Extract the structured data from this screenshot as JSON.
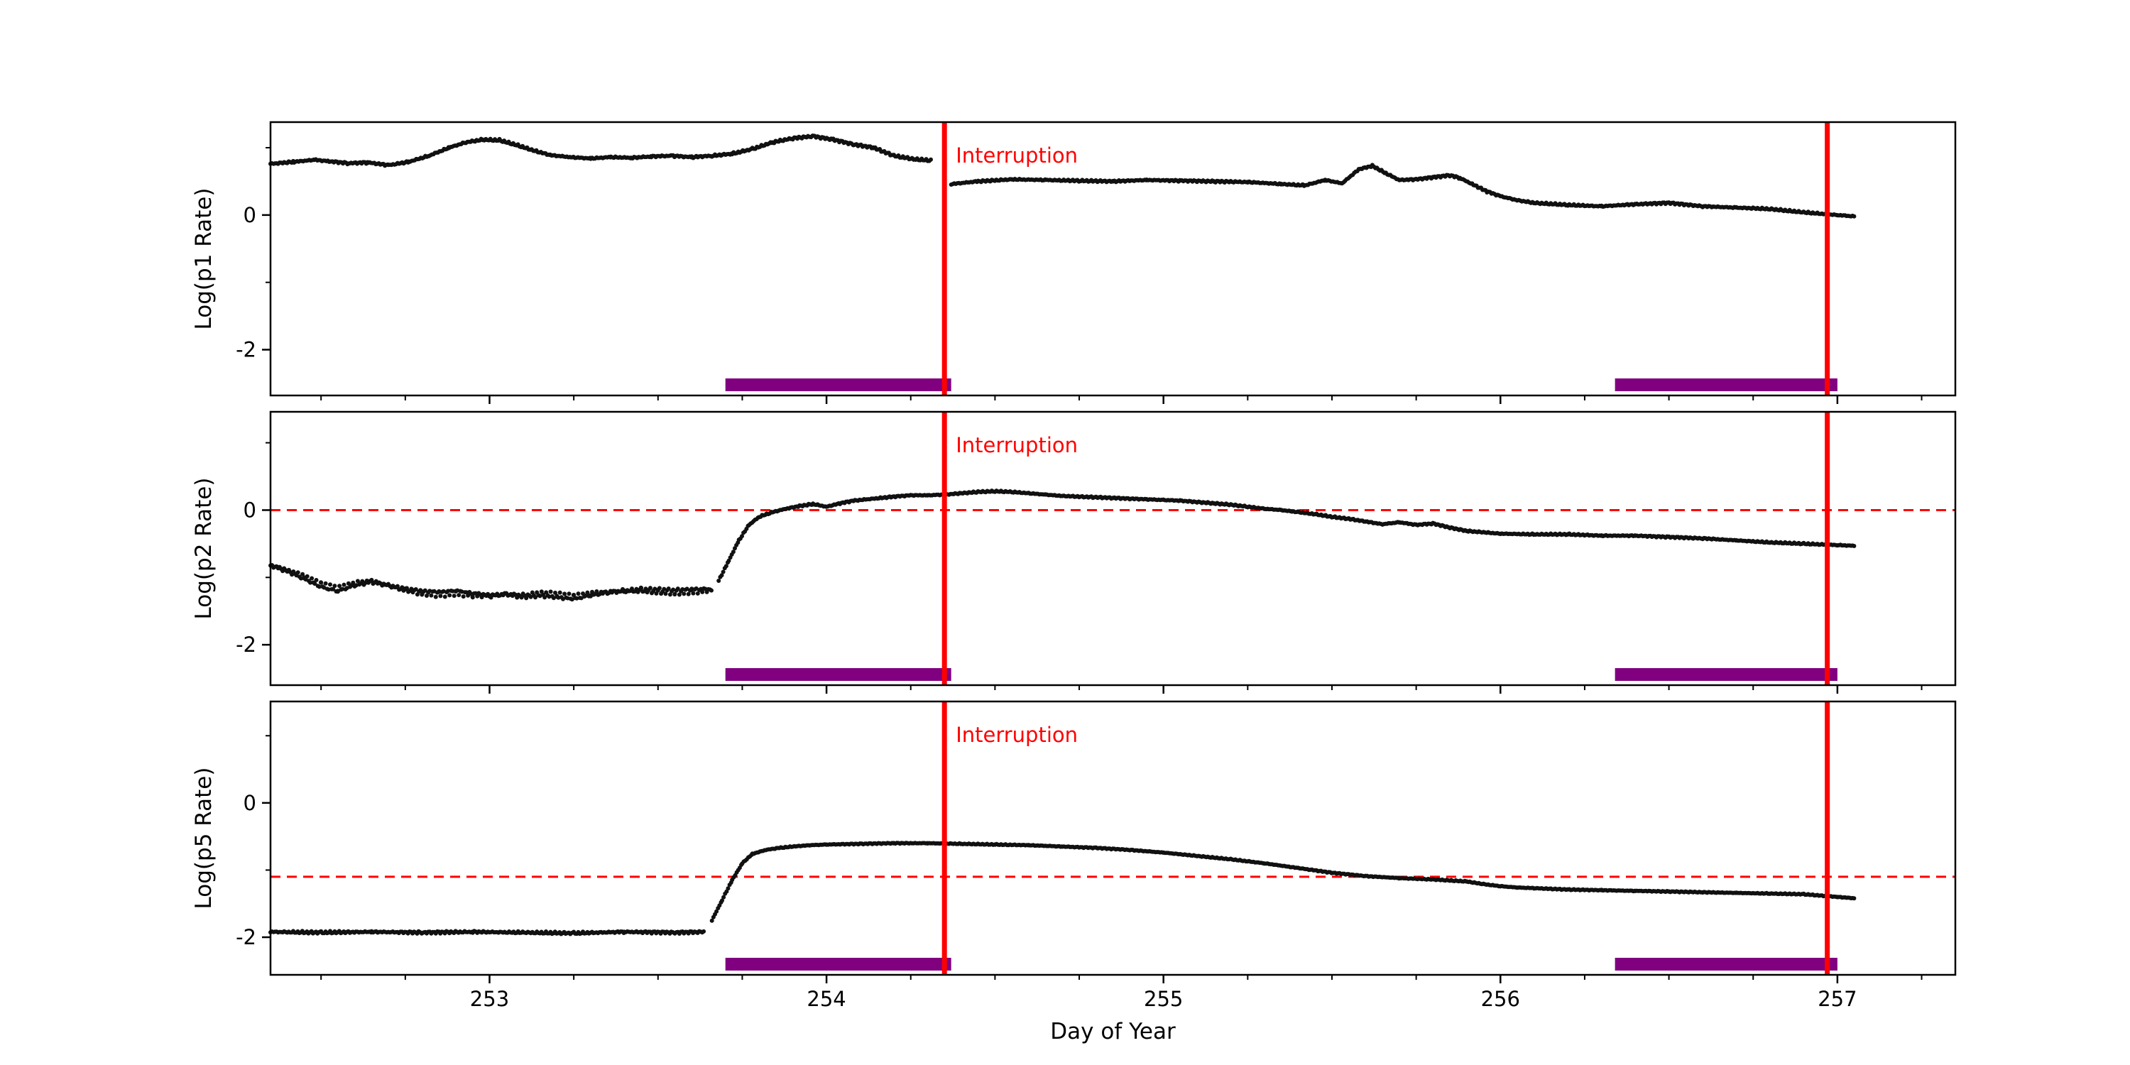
{
  "figure": {
    "xlabel": "Day of Year",
    "background": "#ffffff",
    "xlim": [
      252.35,
      257.35
    ],
    "x_ticks_major": [
      253,
      254,
      255,
      256,
      257
    ],
    "x_minor_step": 0.25,
    "axis_color": "#000000",
    "marker_color": "#111111",
    "annotation_label": "Interruption",
    "annotation_color": "#ff0000",
    "vline_color": "#ff0000",
    "vlines_x": [
      254.35,
      256.97
    ],
    "span_color": "#800080",
    "spans_x": [
      [
        253.7,
        254.37
      ],
      [
        256.34,
        257.0
      ]
    ],
    "hline_color": "#ff0000"
  },
  "chart_data": [
    {
      "type": "scatter",
      "title": "",
      "ylabel": "Log(p1 Rate)",
      "ylim": [
        -2.68,
        1.38
      ],
      "yticks_major": [
        0,
        -2
      ],
      "yticks_minor": [
        1,
        -1
      ],
      "hline_y": null,
      "annotation": "Interruption",
      "segments": [
        {
          "noise": 0.018,
          "points": [
            [
              252.35,
              0.76
            ],
            [
              252.42,
              0.79
            ],
            [
              252.48,
              0.82
            ],
            [
              252.52,
              0.8
            ],
            [
              252.58,
              0.77
            ],
            [
              252.64,
              0.78
            ],
            [
              252.7,
              0.74
            ],
            [
              252.76,
              0.79
            ],
            [
              252.82,
              0.88
            ],
            [
              252.88,
              1.0
            ],
            [
              252.93,
              1.08
            ],
            [
              252.98,
              1.12
            ],
            [
              253.03,
              1.11
            ],
            [
              253.08,
              1.04
            ],
            [
              253.13,
              0.96
            ],
            [
              253.18,
              0.89
            ],
            [
              253.24,
              0.86
            ],
            [
              253.3,
              0.84
            ],
            [
              253.36,
              0.86
            ],
            [
              253.42,
              0.85
            ],
            [
              253.48,
              0.87
            ],
            [
              253.54,
              0.88
            ],
            [
              253.6,
              0.86
            ],
            [
              253.66,
              0.88
            ],
            [
              253.72,
              0.91
            ],
            [
              253.78,
              0.98
            ],
            [
              253.84,
              1.08
            ],
            [
              253.9,
              1.14
            ],
            [
              253.96,
              1.17
            ],
            [
              254.02,
              1.12
            ],
            [
              254.08,
              1.05
            ],
            [
              254.14,
              1.0
            ],
            [
              254.2,
              0.88
            ],
            [
              254.26,
              0.83
            ],
            [
              254.31,
              0.81
            ]
          ]
        },
        {
          "noise": 0.015,
          "points": [
            [
              254.37,
              0.46
            ],
            [
              254.45,
              0.5
            ],
            [
              254.55,
              0.53
            ],
            [
              254.65,
              0.52
            ],
            [
              254.75,
              0.51
            ],
            [
              254.85,
              0.5
            ],
            [
              254.95,
              0.52
            ],
            [
              255.05,
              0.51
            ],
            [
              255.15,
              0.5
            ],
            [
              255.25,
              0.49
            ],
            [
              255.35,
              0.46
            ],
            [
              255.42,
              0.44
            ],
            [
              255.48,
              0.52
            ],
            [
              255.53,
              0.47
            ],
            [
              255.58,
              0.68
            ],
            [
              255.62,
              0.73
            ],
            [
              255.66,
              0.62
            ],
            [
              255.7,
              0.52
            ],
            [
              255.75,
              0.53
            ],
            [
              255.8,
              0.56
            ],
            [
              255.85,
              0.59
            ],
            [
              255.88,
              0.55
            ],
            [
              255.92,
              0.45
            ],
            [
              255.96,
              0.35
            ],
            [
              256.0,
              0.28
            ],
            [
              256.05,
              0.22
            ],
            [
              256.1,
              0.18
            ],
            [
              256.2,
              0.15
            ],
            [
              256.3,
              0.13
            ],
            [
              256.4,
              0.16
            ],
            [
              256.5,
              0.18
            ],
            [
              256.6,
              0.13
            ],
            [
              256.7,
              0.11
            ],
            [
              256.8,
              0.09
            ],
            [
              256.9,
              0.04
            ],
            [
              257.0,
              0.0
            ],
            [
              257.05,
              -0.02
            ]
          ]
        }
      ]
    },
    {
      "type": "scatter",
      "title": "",
      "ylabel": "Log(p2 Rate)",
      "ylim": [
        -2.6,
        1.46
      ],
      "yticks_major": [
        0,
        -2
      ],
      "yticks_minor": [
        1,
        -1
      ],
      "hline_y": 0,
      "annotation": "Interruption",
      "segments": [
        {
          "noise": 0.055,
          "points": [
            [
              252.35,
              -0.82
            ],
            [
              252.4,
              -0.9
            ],
            [
              252.45,
              -1.0
            ],
            [
              252.5,
              -1.12
            ],
            [
              252.55,
              -1.18
            ],
            [
              252.6,
              -1.1
            ],
            [
              252.65,
              -1.06
            ],
            [
              252.7,
              -1.12
            ],
            [
              252.75,
              -1.18
            ],
            [
              252.8,
              -1.22
            ],
            [
              252.85,
              -1.24
            ],
            [
              252.9,
              -1.22
            ],
            [
              252.95,
              -1.25
            ],
            [
              253.0,
              -1.27
            ],
            [
              253.05,
              -1.25
            ],
            [
              253.1,
              -1.28
            ],
            [
              253.15,
              -1.25
            ],
            [
              253.2,
              -1.27
            ],
            [
              253.25,
              -1.3
            ],
            [
              253.3,
              -1.25
            ],
            [
              253.35,
              -1.22
            ],
            [
              253.4,
              -1.2
            ],
            [
              253.45,
              -1.19
            ],
            [
              253.5,
              -1.2
            ],
            [
              253.55,
              -1.21
            ],
            [
              253.6,
              -1.2
            ],
            [
              253.66,
              -1.18
            ]
          ]
        },
        {
          "noise": 0.012,
          "points": [
            [
              253.68,
              -1.05
            ],
            [
              253.71,
              -0.75
            ],
            [
              253.74,
              -0.45
            ],
            [
              253.77,
              -0.22
            ],
            [
              253.8,
              -0.1
            ],
            [
              253.84,
              -0.03
            ],
            [
              253.88,
              0.02
            ],
            [
              253.92,
              0.06
            ],
            [
              253.96,
              0.09
            ],
            [
              254.0,
              0.05
            ],
            [
              254.04,
              0.1
            ],
            [
              254.08,
              0.14
            ],
            [
              254.12,
              0.16
            ],
            [
              254.16,
              0.18
            ],
            [
              254.2,
              0.2
            ],
            [
              254.25,
              0.22
            ],
            [
              254.3,
              0.22
            ],
            [
              254.35,
              0.23
            ],
            [
              254.4,
              0.25
            ],
            [
              254.45,
              0.27
            ],
            [
              254.5,
              0.28
            ],
            [
              254.55,
              0.27
            ],
            [
              254.6,
              0.25
            ],
            [
              254.65,
              0.23
            ],
            [
              254.7,
              0.21
            ],
            [
              254.75,
              0.2
            ],
            [
              254.8,
              0.19
            ],
            [
              254.85,
              0.18
            ],
            [
              254.9,
              0.17
            ],
            [
              254.95,
              0.16
            ],
            [
              255.0,
              0.15
            ],
            [
              255.05,
              0.14
            ],
            [
              255.1,
              0.12
            ],
            [
              255.15,
              0.1
            ],
            [
              255.2,
              0.08
            ],
            [
              255.25,
              0.05
            ],
            [
              255.3,
              0.02
            ],
            [
              255.35,
              0.0
            ],
            [
              255.4,
              -0.03
            ],
            [
              255.45,
              -0.06
            ],
            [
              255.5,
              -0.1
            ],
            [
              255.55,
              -0.13
            ],
            [
              255.6,
              -0.17
            ],
            [
              255.65,
              -0.21
            ],
            [
              255.7,
              -0.18
            ],
            [
              255.75,
              -0.22
            ],
            [
              255.8,
              -0.2
            ],
            [
              255.85,
              -0.26
            ],
            [
              255.9,
              -0.31
            ],
            [
              255.95,
              -0.33
            ],
            [
              256.0,
              -0.35
            ],
            [
              256.1,
              -0.36
            ],
            [
              256.2,
              -0.36
            ],
            [
              256.3,
              -0.38
            ],
            [
              256.4,
              -0.38
            ],
            [
              256.5,
              -0.4
            ],
            [
              256.6,
              -0.42
            ],
            [
              256.7,
              -0.45
            ],
            [
              256.8,
              -0.48
            ],
            [
              256.9,
              -0.5
            ],
            [
              257.0,
              -0.52
            ],
            [
              257.05,
              -0.53
            ]
          ]
        }
      ]
    },
    {
      "type": "scatter",
      "title": "",
      "ylabel": "Log(p5 Rate)",
      "ylim": [
        -2.56,
        1.51
      ],
      "yticks_major": [
        0,
        -2
      ],
      "yticks_minor": [
        1,
        -1
      ],
      "hline_y": -1.1,
      "annotation": "Interruption",
      "segments": [
        {
          "noise": 0.02,
          "points": [
            [
              252.35,
              -1.92
            ],
            [
              252.5,
              -1.93
            ],
            [
              252.65,
              -1.92
            ],
            [
              252.8,
              -1.93
            ],
            [
              252.95,
              -1.92
            ],
            [
              253.1,
              -1.93
            ],
            [
              253.25,
              -1.94
            ],
            [
              253.4,
              -1.92
            ],
            [
              253.55,
              -1.93
            ],
            [
              253.64,
              -1.92
            ]
          ]
        },
        {
          "noise": 0.008,
          "points": [
            [
              253.66,
              -1.75
            ],
            [
              253.69,
              -1.45
            ],
            [
              253.72,
              -1.15
            ],
            [
              253.75,
              -0.9
            ],
            [
              253.78,
              -0.76
            ],
            [
              253.82,
              -0.7
            ],
            [
              253.86,
              -0.67
            ],
            [
              253.9,
              -0.65
            ],
            [
              253.95,
              -0.63
            ],
            [
              254.0,
              -0.62
            ],
            [
              254.1,
              -0.61
            ],
            [
              254.2,
              -0.6
            ],
            [
              254.3,
              -0.6
            ],
            [
              254.4,
              -0.61
            ],
            [
              254.5,
              -0.62
            ],
            [
              254.6,
              -0.63
            ],
            [
              254.7,
              -0.65
            ],
            [
              254.8,
              -0.67
            ],
            [
              254.9,
              -0.7
            ],
            [
              255.0,
              -0.74
            ],
            [
              255.1,
              -0.79
            ],
            [
              255.2,
              -0.84
            ],
            [
              255.3,
              -0.9
            ],
            [
              255.4,
              -0.97
            ],
            [
              255.5,
              -1.04
            ],
            [
              255.6,
              -1.09
            ],
            [
              255.7,
              -1.12
            ],
            [
              255.8,
              -1.14
            ],
            [
              255.9,
              -1.17
            ],
            [
              255.95,
              -1.21
            ],
            [
              256.0,
              -1.24
            ],
            [
              256.05,
              -1.26
            ],
            [
              256.1,
              -1.27
            ],
            [
              256.2,
              -1.29
            ],
            [
              256.3,
              -1.3
            ],
            [
              256.4,
              -1.31
            ],
            [
              256.5,
              -1.32
            ],
            [
              256.6,
              -1.33
            ],
            [
              256.7,
              -1.34
            ],
            [
              256.8,
              -1.35
            ],
            [
              256.9,
              -1.36
            ],
            [
              257.0,
              -1.4
            ],
            [
              257.05,
              -1.42
            ]
          ]
        }
      ]
    }
  ]
}
